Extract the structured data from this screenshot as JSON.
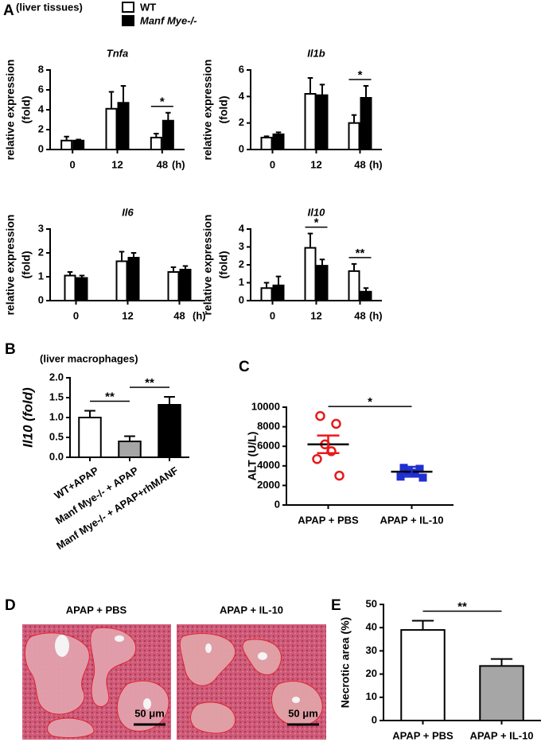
{
  "figure": {
    "letters": [
      "A",
      "B",
      "C",
      "D",
      "E"
    ],
    "A_header": "(liver tissues)",
    "B_header": "(liver macrophages)",
    "D_labels": [
      "APAP + PBS",
      "APAP + IL-10"
    ],
    "scale_bar": "50 μm"
  },
  "chart_data": [
    {
      "type": "bar",
      "title": "Tnfa",
      "ylabel": [
        "relative expression",
        "(fold)"
      ],
      "xlabel": "(h)",
      "categories": [
        "0",
        "12",
        "48"
      ],
      "ylim": [
        0,
        8
      ],
      "yticks": [
        0,
        2,
        4,
        6,
        8
      ],
      "series": [
        {
          "name": "WT",
          "color": "#ffffff",
          "values": [
            0.9,
            4.1,
            1.2
          ],
          "errors": [
            0.4,
            1.7,
            0.4
          ]
        },
        {
          "name": "Manf Mye-/-",
          "color": "#000000",
          "values": [
            0.9,
            4.7,
            2.9
          ],
          "errors": [
            0.1,
            1.7,
            0.8
          ]
        }
      ],
      "significance": [
        {
          "label": "*",
          "category": 2
        }
      ]
    },
    {
      "type": "bar",
      "title": "Il1b",
      "ylabel": [
        "relative expression",
        "(fold)"
      ],
      "xlabel": "(h)",
      "categories": [
        "0",
        "12",
        "48"
      ],
      "ylim": [
        0,
        6
      ],
      "yticks": [
        0,
        2,
        4,
        6
      ],
      "series": [
        {
          "color": "#ffffff",
          "values": [
            0.9,
            4.2,
            2.0
          ],
          "errors": [
            0.1,
            1.2,
            0.6
          ]
        },
        {
          "color": "#000000",
          "values": [
            1.15,
            4.1,
            3.9
          ],
          "errors": [
            0.15,
            0.8,
            0.9
          ]
        }
      ],
      "significance": [
        {
          "label": "*",
          "category": 2
        }
      ]
    },
    {
      "type": "bar",
      "title": "Il6",
      "ylabel": [
        "relative expression",
        "(fold)"
      ],
      "xlabel": "(h)",
      "categories": [
        "0",
        "12",
        "48"
      ],
      "ylim": [
        0,
        3
      ],
      "yticks": [
        0,
        1,
        2,
        3
      ],
      "series": [
        {
          "color": "#ffffff",
          "values": [
            1.05,
            1.65,
            1.2
          ],
          "errors": [
            0.15,
            0.4,
            0.2
          ]
        },
        {
          "color": "#000000",
          "values": [
            0.95,
            1.8,
            1.3
          ],
          "errors": [
            0.1,
            0.2,
            0.15
          ]
        }
      ]
    },
    {
      "type": "bar",
      "title": "Il10",
      "ylabel": [
        "relative expression",
        "(fold)"
      ],
      "xlabel": "(h)",
      "categories": [
        "0",
        "12",
        "48"
      ],
      "ylim": [
        0,
        4
      ],
      "yticks": [
        0,
        1,
        2,
        3,
        4
      ],
      "series": [
        {
          "color": "#ffffff",
          "values": [
            0.7,
            2.95,
            1.65
          ],
          "errors": [
            0.3,
            0.8,
            0.4
          ]
        },
        {
          "color": "#000000",
          "values": [
            0.85,
            1.95,
            0.5
          ],
          "errors": [
            0.5,
            0.35,
            0.2
          ]
        }
      ],
      "significance": [
        {
          "label": "*",
          "category": 1
        },
        {
          "label": "**",
          "category": 2
        }
      ]
    },
    {
      "type": "bar",
      "ylabel": "Il10 (fold)",
      "categories": [
        "WT+APAP",
        "Manf Mye-/- + APAP",
        "Manf Mye-/- + APAP+rhMANF"
      ],
      "colors": [
        "#ffffff",
        "#a6a6a6",
        "#000000"
      ],
      "values": [
        1.0,
        0.4,
        1.32
      ],
      "errors": [
        0.17,
        0.13,
        0.2
      ],
      "ylim": [
        0,
        2
      ],
      "yticks": [
        {
          "value": 0,
          "label": "0.0"
        },
        0.5,
        {
          "value": 1,
          "label": "1.0"
        },
        1.5,
        {
          "value": 2,
          "label": "2.0"
        }
      ],
      "significance": [
        {
          "label": "**",
          "between": [
            0,
            1
          ]
        },
        {
          "label": "**",
          "between": [
            1,
            2
          ]
        }
      ]
    },
    {
      "type": "scatter",
      "ylabel": "ALT (U/L)",
      "categories": [
        "APAP + PBS",
        "APAP + IL-10"
      ],
      "ylim": [
        0,
        10000
      ],
      "yticks": [
        0,
        2000,
        4000,
        6000,
        8000,
        10000
      ],
      "groups": [
        {
          "color": "#e8191b",
          "marker": "circle",
          "values": [
            9100,
            8300,
            6200,
            5500,
            4700,
            3000
          ],
          "mean": 6200,
          "sem": 900
        },
        {
          "color": "#1f2fd0",
          "marker": "square",
          "values": [
            3800,
            3700,
            3400,
            3300,
            2900,
            2800
          ],
          "mean": 3400,
          "sem": 500
        }
      ],
      "significance": [
        {
          "label": "*",
          "between": [
            0,
            1
          ]
        }
      ]
    },
    {
      "type": "bar",
      "ylabel": "Necrotic area (%)",
      "categories": [
        "APAP + PBS",
        "APAP + IL-10"
      ],
      "colors": [
        "#ffffff",
        "#a6a6a6"
      ],
      "values": [
        39,
        23.5
      ],
      "errors": [
        4,
        3
      ],
      "ylim": [
        0,
        50
      ],
      "yticks": [
        0,
        10,
        20,
        30,
        40,
        50
      ],
      "significance": [
        {
          "label": "**",
          "between": [
            0,
            1
          ]
        }
      ]
    }
  ]
}
